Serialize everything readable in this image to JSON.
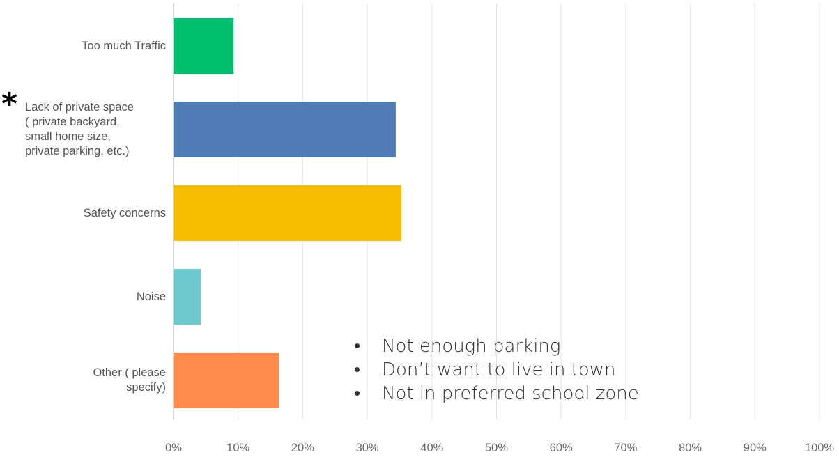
{
  "chart_data": {
    "type": "bar",
    "orientation": "horizontal",
    "categories": [
      "Too much Traffic",
      "Lack of private space ( private backyard, small home size, private parking, etc.)",
      "Safety concerns",
      "Noise",
      "Other ( please specify)"
    ],
    "category_lines": [
      [
        "Too much Traffic"
      ],
      [
        "Lack of private space",
        "( private backyard,",
        "small home size,",
        "private parking, etc.)"
      ],
      [
        "Safety concerns"
      ],
      [
        "Noise"
      ],
      [
        "Other ( please",
        "specify)"
      ]
    ],
    "values": [
      9.3,
      34.4,
      35.3,
      4.2,
      16.3
    ],
    "colors": [
      "#00BF6F",
      "#507CB6",
      "#F6BE00",
      "#6BC8CD",
      "#FF8B4F"
    ],
    "xlim": [
      0,
      100
    ],
    "xticks": [
      "0%",
      "10%",
      "20%",
      "30%",
      "40%",
      "50%",
      "60%",
      "70%",
      "80%",
      "90%",
      "100%"
    ],
    "grid": true,
    "title": "",
    "xlabel": "",
    "ylabel": ""
  },
  "annotations": {
    "asterisk": "*",
    "bullet": "•",
    "notes": [
      "Not enough parking",
      "Don’t want to live in town",
      "Not in preferred school zone"
    ]
  }
}
